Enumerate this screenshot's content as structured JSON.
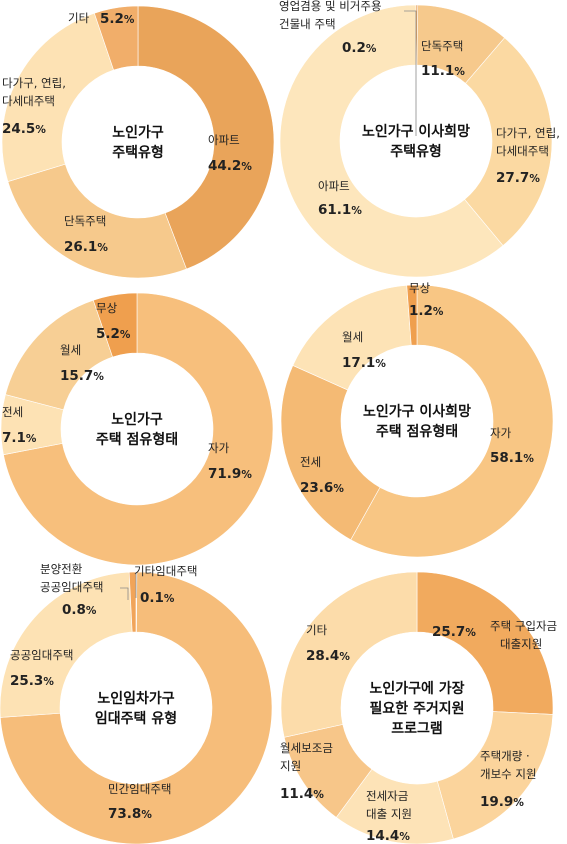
{
  "chart_data": [
    {
      "type": "pie",
      "title": [
        "노인가구",
        "주택유형"
      ],
      "slices": [
        {
          "name": [
            "아파트"
          ],
          "value": 44.2,
          "color": "#e9a45a"
        },
        {
          "name": [
            "단독주택"
          ],
          "value": 26.1,
          "color": "#f6c98c"
        },
        {
          "name": [
            "다가구, 연립,",
            "다세대주택"
          ],
          "value": 24.5,
          "color": "#fde2b4"
        },
        {
          "name": [
            "기타"
          ],
          "value": 5.2,
          "color": "#f1ae6a"
        }
      ]
    },
    {
      "type": "pie",
      "title": [
        "노인가구 이사희망",
        "주택유형"
      ],
      "slices": [
        {
          "name": [
            "영업겸용 및 비거주용",
            "건물내 주택"
          ],
          "value": 0.2,
          "color": "#e08d3c"
        },
        {
          "name": [
            "단독주택"
          ],
          "value": 11.1,
          "color": "#f6c98c"
        },
        {
          "name": [
            "다가구, 연립,",
            "다세대주택"
          ],
          "value": 27.7,
          "color": "#fbd9a2"
        },
        {
          "name": [
            "아파트"
          ],
          "value": 61.1,
          "color": "#fde6bc"
        }
      ]
    },
    {
      "type": "pie",
      "title": [
        "노인가구",
        "주택 점유형태"
      ],
      "slices": [
        {
          "name": [
            "자가"
          ],
          "value": 71.9,
          "color": "#f7bf7c"
        },
        {
          "name": [
            "전세"
          ],
          "value": 7.1,
          "color": "#fde2b4"
        },
        {
          "name": [
            "월세"
          ],
          "value": 15.7,
          "color": "#f7cf95"
        },
        {
          "name": [
            "무상"
          ],
          "value": 5.2,
          "color": "#ef9f4e"
        }
      ]
    },
    {
      "type": "pie",
      "title": [
        "노인가구 이사희망",
        "주택 점유형태"
      ],
      "slices": [
        {
          "name": [
            "자가"
          ],
          "value": 58.1,
          "color": "#f8c684"
        },
        {
          "name": [
            "전세"
          ],
          "value": 23.6,
          "color": "#f4ba74"
        },
        {
          "name": [
            "월세"
          ],
          "value": 17.1,
          "color": "#fde3b6"
        },
        {
          "name": [
            "무상"
          ],
          "value": 1.2,
          "color": "#ef9f4e"
        }
      ]
    },
    {
      "type": "pie",
      "title": [
        "노인임차가구",
        "임대주택 유형"
      ],
      "slices": [
        {
          "name": [
            "기타임대주택"
          ],
          "value": 0.1,
          "color": "#e08d3c"
        },
        {
          "name": [
            "민간임대주택"
          ],
          "value": 73.8,
          "color": "#f6bd7a"
        },
        {
          "name": [
            "공공임대주택"
          ],
          "value": 25.3,
          "color": "#fde2b4"
        },
        {
          "name": [
            "분양전환",
            "공공임대주택"
          ],
          "value": 0.8,
          "color": "#f1a459"
        }
      ]
    },
    {
      "type": "pie",
      "title": [
        "노인가구에 가장",
        "필요한 주거지원",
        "프로그램"
      ],
      "slices": [
        {
          "name": [
            "주택 구입자금",
            "대출지원"
          ],
          "value": 25.7,
          "color": "#f1aa5e"
        },
        {
          "name": [
            "주택개량 ·",
            "개보수 지원"
          ],
          "value": 19.9,
          "color": "#fbd49c"
        },
        {
          "name": [
            "전세자금",
            "대출 지원"
          ],
          "value": 14.4,
          "color": "#fde3b7"
        },
        {
          "name": [
            "월세보조금",
            "지원"
          ],
          "value": 11.4,
          "color": "#f7c689"
        },
        {
          "name": [
            "기타"
          ],
          "value": 28.4,
          "color": "#fcdcaa"
        }
      ]
    }
  ]
}
